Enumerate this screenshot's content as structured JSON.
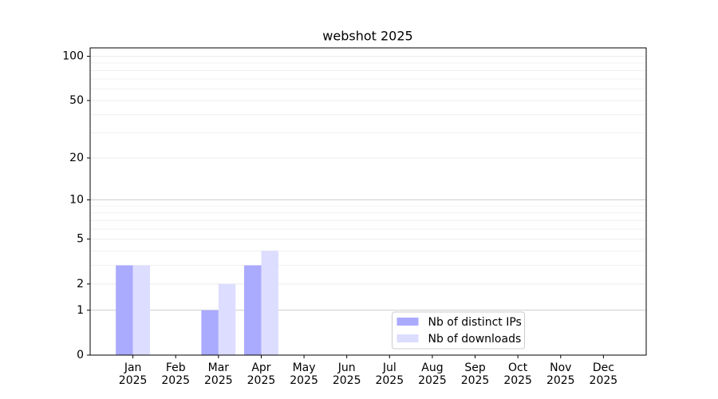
{
  "chart_data": {
    "type": "bar",
    "title": "webshot 2025",
    "categories": [
      "Jan\n2025",
      "Feb\n2025",
      "Mar\n2025",
      "Apr\n2025",
      "May\n2025",
      "Jun\n2025",
      "Jul\n2025",
      "Aug\n2025",
      "Sep\n2025",
      "Oct\n2025",
      "Nov\n2025",
      "Dec\n2025"
    ],
    "series": [
      {
        "name": "Nb of distinct IPs",
        "color": "#aaaaff",
        "values": [
          3,
          0,
          1,
          3,
          0,
          0,
          0,
          0,
          0,
          0,
          0,
          0
        ]
      },
      {
        "name": "Nb of downloads",
        "color": "#ddddff",
        "values": [
          3,
          0,
          2,
          4,
          0,
          0,
          0,
          0,
          0,
          0,
          0,
          0
        ]
      }
    ],
    "yscale": "log1p",
    "ylim": [
      0,
      114
    ],
    "yticks": [
      0,
      1,
      2,
      5,
      10,
      20,
      50,
      100
    ],
    "minor_yticks": [
      3,
      4,
      6,
      7,
      8,
      9,
      30,
      40,
      60,
      70,
      80,
      90
    ],
    "grid": true,
    "legend": "lower center"
  }
}
